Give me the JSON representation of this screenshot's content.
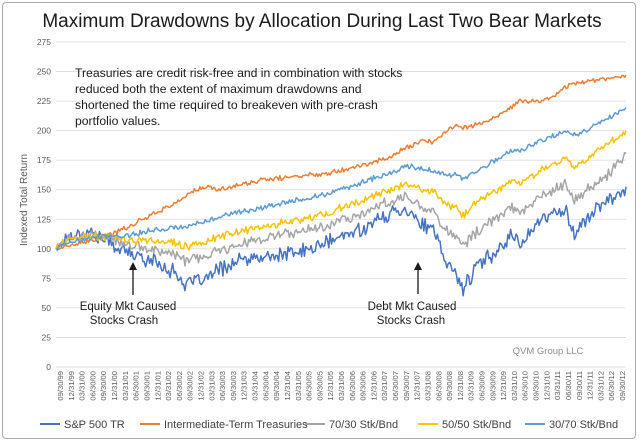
{
  "chart_data": {
    "type": "line",
    "title": "Maximum Drawdowns by Allocation During Last Two Bear Markets",
    "ylabel": "Indexed Total Return",
    "xlabel": "",
    "ylim": [
      0,
      275
    ],
    "yticks": [
      0,
      25,
      50,
      75,
      100,
      125,
      150,
      175,
      200,
      225,
      250,
      275
    ],
    "grid": true,
    "legend_position": "bottom",
    "x_tick_labels": [
      "09/30/99",
      "12/31/99",
      "03/31/00",
      "06/30/00",
      "09/30/00",
      "12/31/00",
      "03/31/01",
      "06/30/01",
      "09/30/01",
      "12/31/01",
      "03/31/02",
      "06/30/02",
      "09/30/02",
      "12/31/02",
      "03/31/03",
      "06/30/03",
      "09/30/03",
      "12/31/03",
      "03/31/04",
      "06/30/04",
      "09/30/04",
      "12/31/04",
      "03/31/05",
      "06/30/05",
      "09/30/05",
      "12/31/05",
      "03/31/06",
      "06/30/06",
      "09/30/06",
      "12/31/06",
      "03/31/07",
      "06/30/07",
      "09/30/07",
      "12/31/07",
      "03/31/08",
      "06/30/08",
      "09/30/08",
      "12/31/08",
      "03/31/09",
      "06/30/09",
      "09/30/09",
      "12/31/09",
      "03/31/10",
      "06/30/10",
      "09/30/10",
      "12/31/10",
      "03/31/11",
      "06/30/11",
      "09/30/11",
      "12/31/11",
      "03/31/12",
      "06/30/12",
      "09/30/12"
    ],
    "x_years": [
      1999.75,
      2000.0,
      2000.5,
      2001.0,
      2001.5,
      2002.0,
      2002.5,
      2002.75,
      2003.0,
      2003.25,
      2003.5,
      2004.0,
      2004.5,
      2005.0,
      2005.5,
      2006.0,
      2006.5,
      2007.0,
      2007.5,
      2007.83,
      2008.25,
      2008.5,
      2008.75,
      2009.0,
      2009.17,
      2009.5,
      2010.0,
      2010.3,
      2010.5,
      2011.0,
      2011.3,
      2011.55,
      2011.75,
      2012.0,
      2012.5,
      2012.9
    ],
    "series": [
      {
        "name": "S&P 500 TR",
        "color": "#4472c4",
        "values": [
          100,
          110,
          115,
          105,
          95,
          90,
          80,
          70,
          72,
          75,
          82,
          90,
          92,
          95,
          98,
          105,
          112,
          120,
          130,
          135,
          120,
          115,
          90,
          80,
          66,
          85,
          100,
          112,
          105,
          125,
          130,
          135,
          110,
          125,
          140,
          150
        ]
      },
      {
        "name": "Intermediate-Term Treasuries",
        "color": "#ed7d31",
        "values": [
          100,
          102,
          106,
          112,
          120,
          130,
          138,
          145,
          150,
          152,
          150,
          154,
          158,
          160,
          162,
          164,
          168,
          172,
          178,
          185,
          192,
          190,
          198,
          205,
          203,
          205,
          212,
          220,
          225,
          225,
          230,
          237,
          240,
          242,
          244,
          246
        ]
      },
      {
        "name": "70/30 Stk/Bnd",
        "color": "#a5a5a5",
        "values": [
          100,
          108,
          112,
          108,
          102,
          100,
          95,
          90,
          91,
          93,
          98,
          105,
          108,
          112,
          115,
          120,
          126,
          133,
          140,
          145,
          135,
          132,
          118,
          110,
          102,
          115,
          127,
          135,
          130,
          145,
          150,
          155,
          140,
          148,
          162,
          178
        ]
      },
      {
        "name": "50/50 Stk/Bnd",
        "color": "#ffc000",
        "values": [
          100,
          107,
          111,
          110,
          107,
          107,
          105,
          102,
          104,
          106,
          110,
          115,
          118,
          122,
          125,
          130,
          136,
          143,
          150,
          155,
          150,
          148,
          138,
          135,
          128,
          140,
          150,
          158,
          155,
          168,
          172,
          178,
          168,
          175,
          188,
          198
        ]
      },
      {
        "name": "30/70 Stk/Bnd",
        "color": "#5b9bd5",
        "values": [
          100,
          105,
          109,
          111,
          112,
          116,
          118,
          118,
          121,
          124,
          127,
          131,
          135,
          139,
          142,
          146,
          152,
          158,
          164,
          170,
          168,
          166,
          163,
          162,
          158,
          166,
          176,
          183,
          183,
          192,
          196,
          200,
          196,
          200,
          210,
          218
        ]
      }
    ],
    "annotations": {
      "note": [
        "Treasuries are credit risk-free  and in combination with stocks",
        "reduced both the extent of maximum drawdowns and",
        "shortened the time required to breakeven with pre-crash",
        "portfolio values."
      ],
      "crash1": [
        "Equity Mkt Caused",
        "Stocks Crash"
      ],
      "crash2": [
        "Debt Mkt Caused",
        "Stocks Crash"
      ],
      "credit": "QVM Group LLC"
    }
  }
}
